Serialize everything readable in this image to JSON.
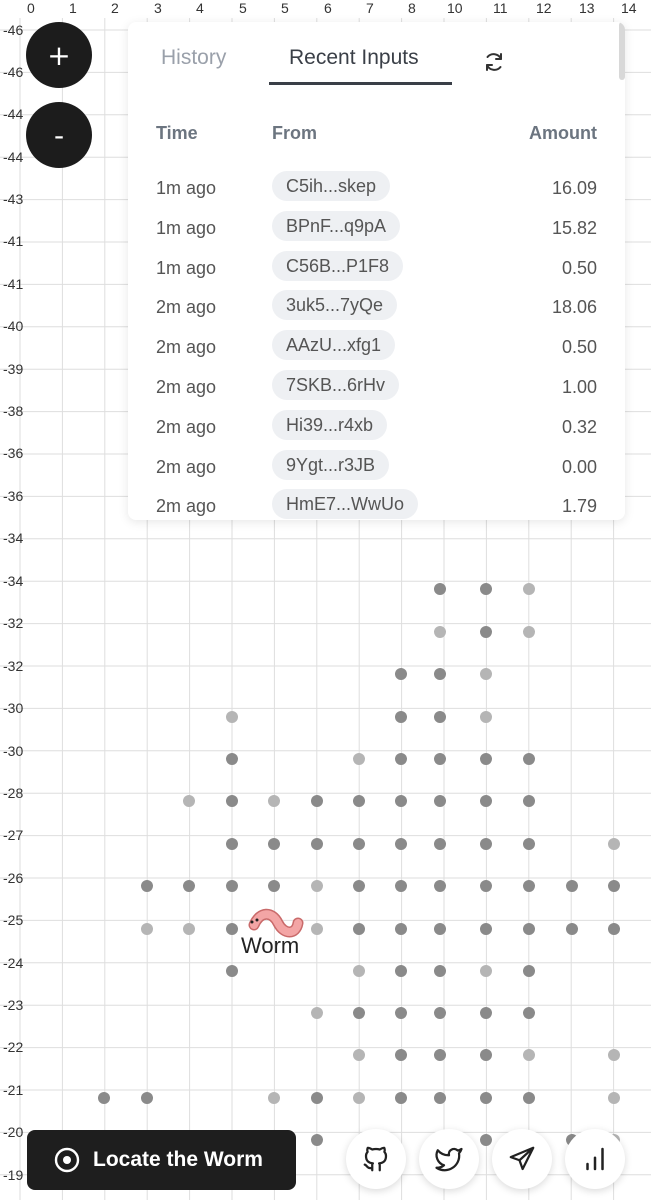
{
  "grid": {
    "x_labels": [
      "0",
      "1",
      "2",
      "3",
      "4",
      "5",
      "5",
      "6",
      "7",
      "8",
      "10",
      "11",
      "12",
      "13",
      "14"
    ],
    "y_labels": [
      "-46",
      "-46",
      "-44",
      "-44",
      "-43",
      "-41",
      "-41",
      "-40",
      "-39",
      "-38",
      "-36",
      "-36",
      "-34",
      "-34",
      "-32",
      "-32",
      "-30",
      "-30",
      "-28",
      "-27",
      "-26",
      "-25",
      "-24",
      "-23",
      "-22",
      "-21",
      "-20",
      "-19"
    ],
    "dots": [
      [
        440,
        589,
        "d"
      ],
      [
        486,
        589,
        "d"
      ],
      [
        529,
        589,
        "l"
      ],
      [
        440,
        632,
        "l"
      ],
      [
        486,
        632,
        "d"
      ],
      [
        529,
        632,
        "l"
      ],
      [
        401,
        674,
        "d"
      ],
      [
        440,
        674,
        "d"
      ],
      [
        486,
        674,
        "l"
      ],
      [
        232,
        717,
        "l"
      ],
      [
        401,
        717,
        "d"
      ],
      [
        440,
        717,
        "d"
      ],
      [
        486,
        717,
        "l"
      ],
      [
        232,
        759,
        "d"
      ],
      [
        359,
        759,
        "l"
      ],
      [
        401,
        759,
        "d"
      ],
      [
        440,
        759,
        "d"
      ],
      [
        486,
        759,
        "d"
      ],
      [
        529,
        759,
        "d"
      ],
      [
        189,
        801,
        "l"
      ],
      [
        232,
        801,
        "d"
      ],
      [
        274,
        801,
        "l"
      ],
      [
        317,
        801,
        "d"
      ],
      [
        359,
        801,
        "d"
      ],
      [
        401,
        801,
        "d"
      ],
      [
        440,
        801,
        "d"
      ],
      [
        486,
        801,
        "d"
      ],
      [
        529,
        801,
        "d"
      ],
      [
        232,
        844,
        "d"
      ],
      [
        274,
        844,
        "d"
      ],
      [
        317,
        844,
        "d"
      ],
      [
        359,
        844,
        "d"
      ],
      [
        401,
        844,
        "d"
      ],
      [
        440,
        844,
        "d"
      ],
      [
        486,
        844,
        "d"
      ],
      [
        529,
        844,
        "d"
      ],
      [
        614,
        844,
        "l"
      ],
      [
        147,
        886,
        "d"
      ],
      [
        189,
        886,
        "d"
      ],
      [
        232,
        886,
        "d"
      ],
      [
        274,
        886,
        "d"
      ],
      [
        317,
        886,
        "l"
      ],
      [
        359,
        886,
        "d"
      ],
      [
        401,
        886,
        "d"
      ],
      [
        440,
        886,
        "d"
      ],
      [
        486,
        886,
        "d"
      ],
      [
        529,
        886,
        "d"
      ],
      [
        572,
        886,
        "d"
      ],
      [
        614,
        886,
        "d"
      ],
      [
        147,
        929,
        "l"
      ],
      [
        189,
        929,
        "l"
      ],
      [
        232,
        929,
        "d"
      ],
      [
        317,
        929,
        "l"
      ],
      [
        359,
        929,
        "d"
      ],
      [
        401,
        929,
        "d"
      ],
      [
        440,
        929,
        "d"
      ],
      [
        486,
        929,
        "d"
      ],
      [
        529,
        929,
        "d"
      ],
      [
        572,
        929,
        "d"
      ],
      [
        614,
        929,
        "d"
      ],
      [
        232,
        971,
        "d"
      ],
      [
        359,
        971,
        "l"
      ],
      [
        401,
        971,
        "d"
      ],
      [
        440,
        971,
        "d"
      ],
      [
        486,
        971,
        "l"
      ],
      [
        529,
        971,
        "d"
      ],
      [
        317,
        1013,
        "l"
      ],
      [
        359,
        1013,
        "d"
      ],
      [
        401,
        1013,
        "d"
      ],
      [
        440,
        1013,
        "d"
      ],
      [
        486,
        1013,
        "d"
      ],
      [
        529,
        1013,
        "d"
      ],
      [
        359,
        1055,
        "l"
      ],
      [
        401,
        1055,
        "d"
      ],
      [
        440,
        1055,
        "d"
      ],
      [
        486,
        1055,
        "d"
      ],
      [
        529,
        1055,
        "l"
      ],
      [
        614,
        1055,
        "l"
      ],
      [
        104,
        1098,
        "d"
      ],
      [
        147,
        1098,
        "d"
      ],
      [
        274,
        1098,
        "l"
      ],
      [
        317,
        1098,
        "d"
      ],
      [
        359,
        1098,
        "l"
      ],
      [
        401,
        1098,
        "d"
      ],
      [
        440,
        1098,
        "d"
      ],
      [
        486,
        1098,
        "d"
      ],
      [
        529,
        1098,
        "d"
      ],
      [
        614,
        1098,
        "l"
      ],
      [
        317,
        1140,
        "d"
      ],
      [
        486,
        1140,
        "d"
      ],
      [
        572,
        1140,
        "d"
      ],
      [
        614,
        1140,
        "l"
      ]
    ]
  },
  "zoom": {
    "in_label": "+",
    "out_label": "-"
  },
  "panel": {
    "tabs": {
      "history": "History",
      "recent": "Recent Inputs"
    },
    "refresh_icon": "refresh-icon",
    "columns": {
      "time": "Time",
      "from": "From",
      "amount": "Amount"
    },
    "rows": [
      {
        "time": "1m ago",
        "from": "C5ih...skep",
        "amount": "16.09"
      },
      {
        "time": "1m ago",
        "from": "BPnF...q9pA",
        "amount": "15.82"
      },
      {
        "time": "1m ago",
        "from": "C56B...P1F8",
        "amount": "0.50"
      },
      {
        "time": "2m ago",
        "from": "3uk5...7yQe",
        "amount": "18.06"
      },
      {
        "time": "2m ago",
        "from": "AAzU...xfg1",
        "amount": "0.50"
      },
      {
        "time": "2m ago",
        "from": "7SKB...6rHv",
        "amount": "1.00"
      },
      {
        "time": "2m ago",
        "from": "Hi39...r4xb",
        "amount": "0.32"
      },
      {
        "time": "2m ago",
        "from": "9Ygt...r3JB",
        "amount": "0.00"
      },
      {
        "time": "2m ago",
        "from": "HmE7...WwUo",
        "amount": "1.79"
      }
    ]
  },
  "worm": {
    "label": "Worm"
  },
  "footer": {
    "locate_label": "Locate the Worm",
    "icons": [
      "github-icon",
      "twitter-icon",
      "telegram-icon",
      "stats-icon"
    ]
  },
  "colors": {
    "dark_dot": "#8a8a8a",
    "light_dot": "#b5b5b5",
    "grid_line": "#dedede",
    "button_dark": "#1e1e1e"
  }
}
